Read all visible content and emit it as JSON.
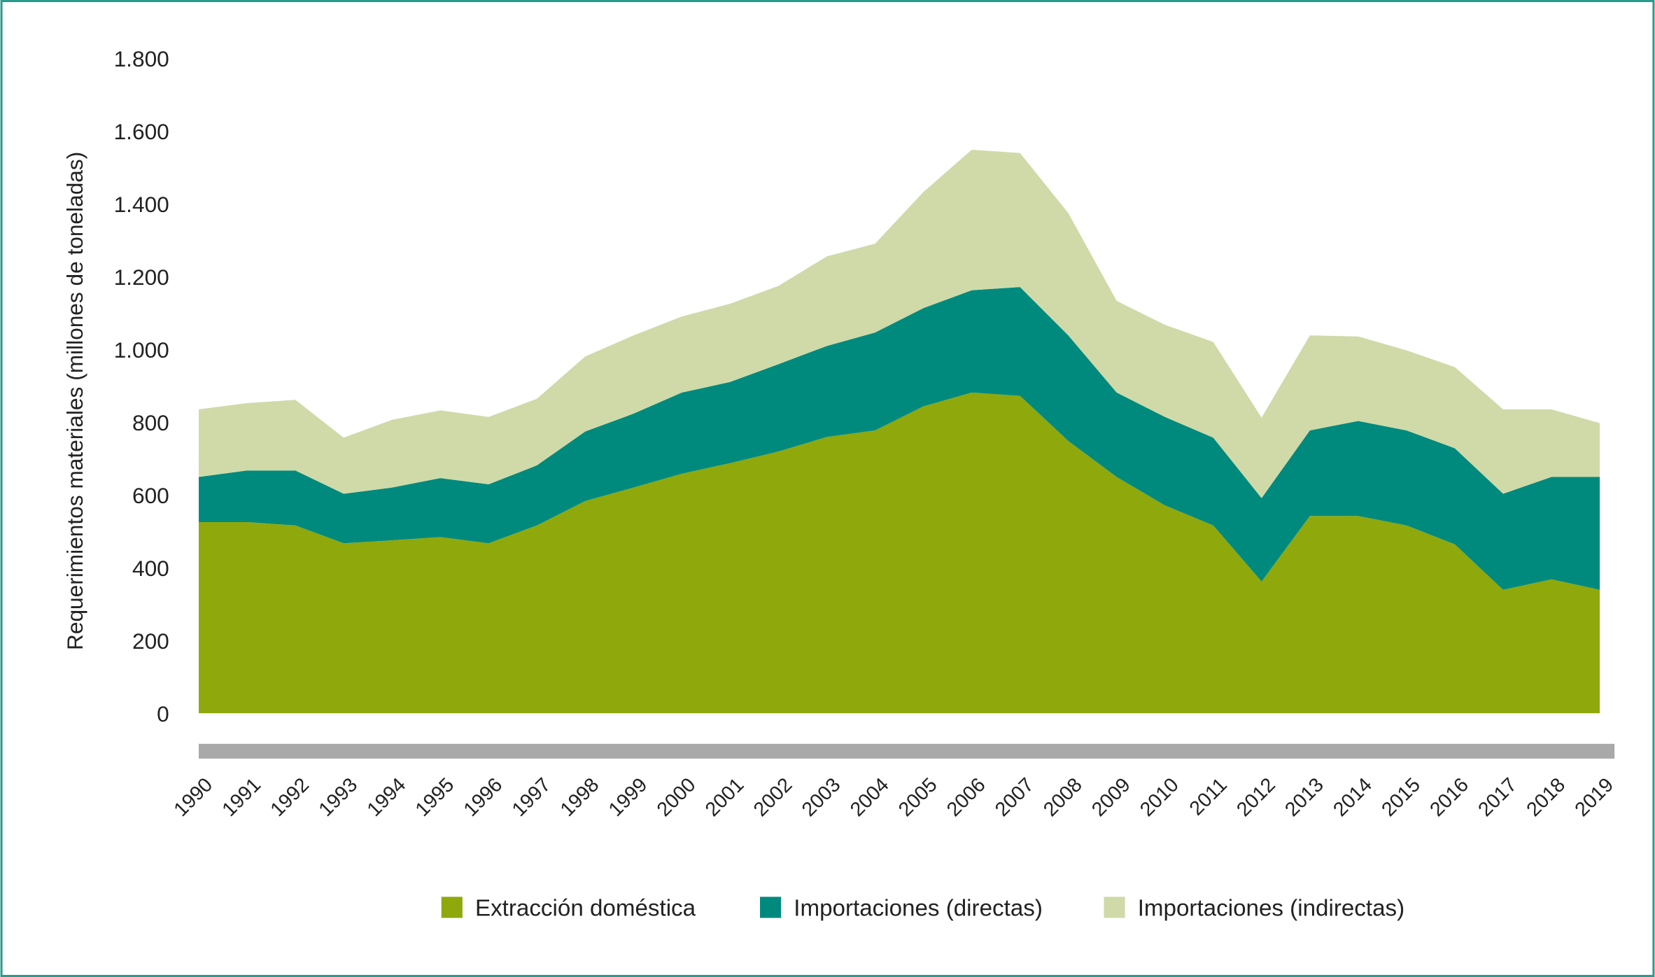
{
  "chart_data": {
    "type": "stacked_area",
    "y_label": "Requerimientos materiales (millones de toneladas)",
    "categories": [
      "1990",
      "1991",
      "1992",
      "1993",
      "1994",
      "1995",
      "1996",
      "1997",
      "1998",
      "1999",
      "2000",
      "2001",
      "2002",
      "2003",
      "2004",
      "2005",
      "2006",
      "2007",
      "2008",
      "2009",
      "2010",
      "2011",
      "2012",
      "2013",
      "2014",
      "2015",
      "2016",
      "2017",
      "2018",
      "2019"
    ],
    "series": [
      {
        "name": "Extracción doméstica",
        "color": "#8fa80c",
        "values": [
          525,
          525,
          516,
          467,
          475,
          484,
          467,
          516,
          583,
          620,
          658,
          687,
          719,
          759,
          777,
          843,
          881,
          872,
          748,
          649,
          571,
          516,
          362,
          542,
          542,
          516,
          464,
          339,
          368,
          339
        ]
      },
      {
        "name": "Importaciones (directas)",
        "color": "#008a7e",
        "values": [
          124,
          142,
          151,
          136,
          145,
          162,
          162,
          165,
          191,
          203,
          223,
          223,
          240,
          250,
          269,
          270,
          281,
          299,
          290,
          232,
          243,
          241,
          229,
          235,
          261,
          261,
          264,
          264,
          281,
          310
        ]
      },
      {
        "name": "Importaciones (indirectas)",
        "color": "#cfdaa8",
        "values": [
          186,
          185,
          194,
          154,
          186,
          186,
          185,
          183,
          206,
          215,
          209,
          215,
          215,
          246,
          244,
          319,
          386,
          368,
          336,
          252,
          253,
          263,
          221,
          261,
          232,
          220,
          223,
          232,
          186,
          148
        ]
      }
    ],
    "ylim": [
      0,
      1800
    ],
    "yticks": [
      0,
      200,
      400,
      600,
      800,
      {
        "value": 1000,
        "label": "1.000"
      },
      {
        "value": 1200,
        "label": "1.200"
      },
      {
        "value": 1400,
        "label": "1.400"
      },
      {
        "value": 1600,
        "label": "1.600"
      },
      {
        "value": 1800,
        "label": "1.800"
      }
    ]
  }
}
